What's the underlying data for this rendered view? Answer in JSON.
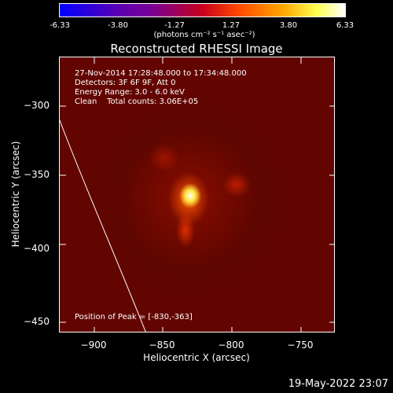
{
  "colorbar": {
    "ticks": [
      "-6.33",
      "-3.80",
      "-1.27",
      "1.27",
      "3.80",
      "6.33"
    ],
    "units": "(photons cm⁻² s⁻¹ asec⁻²)"
  },
  "title": "Reconstructed RHESSI Image",
  "info": {
    "time_range": "27-Nov-2014 17:28:48.000 to 17:34:48.000",
    "detectors": "Detectors: 3F 6F 9F, Att 0",
    "energy": "Energy Range: 3.0 - 6.0 keV",
    "clean": "Clean    Total counts: 3.06E+05",
    "peak": "Position of Peak = [-830,-363]"
  },
  "axes": {
    "xlabel": "Heliocentric X (arcsec)",
    "ylabel": "Heliocentric Y (arcsec)",
    "xticks": [
      "−900",
      "−850",
      "−800",
      "−750"
    ],
    "yticks": [
      "−300",
      "−350",
      "−400",
      "−450"
    ]
  },
  "footer": {
    "datestamp": "19-May-2022 23:07"
  }
}
